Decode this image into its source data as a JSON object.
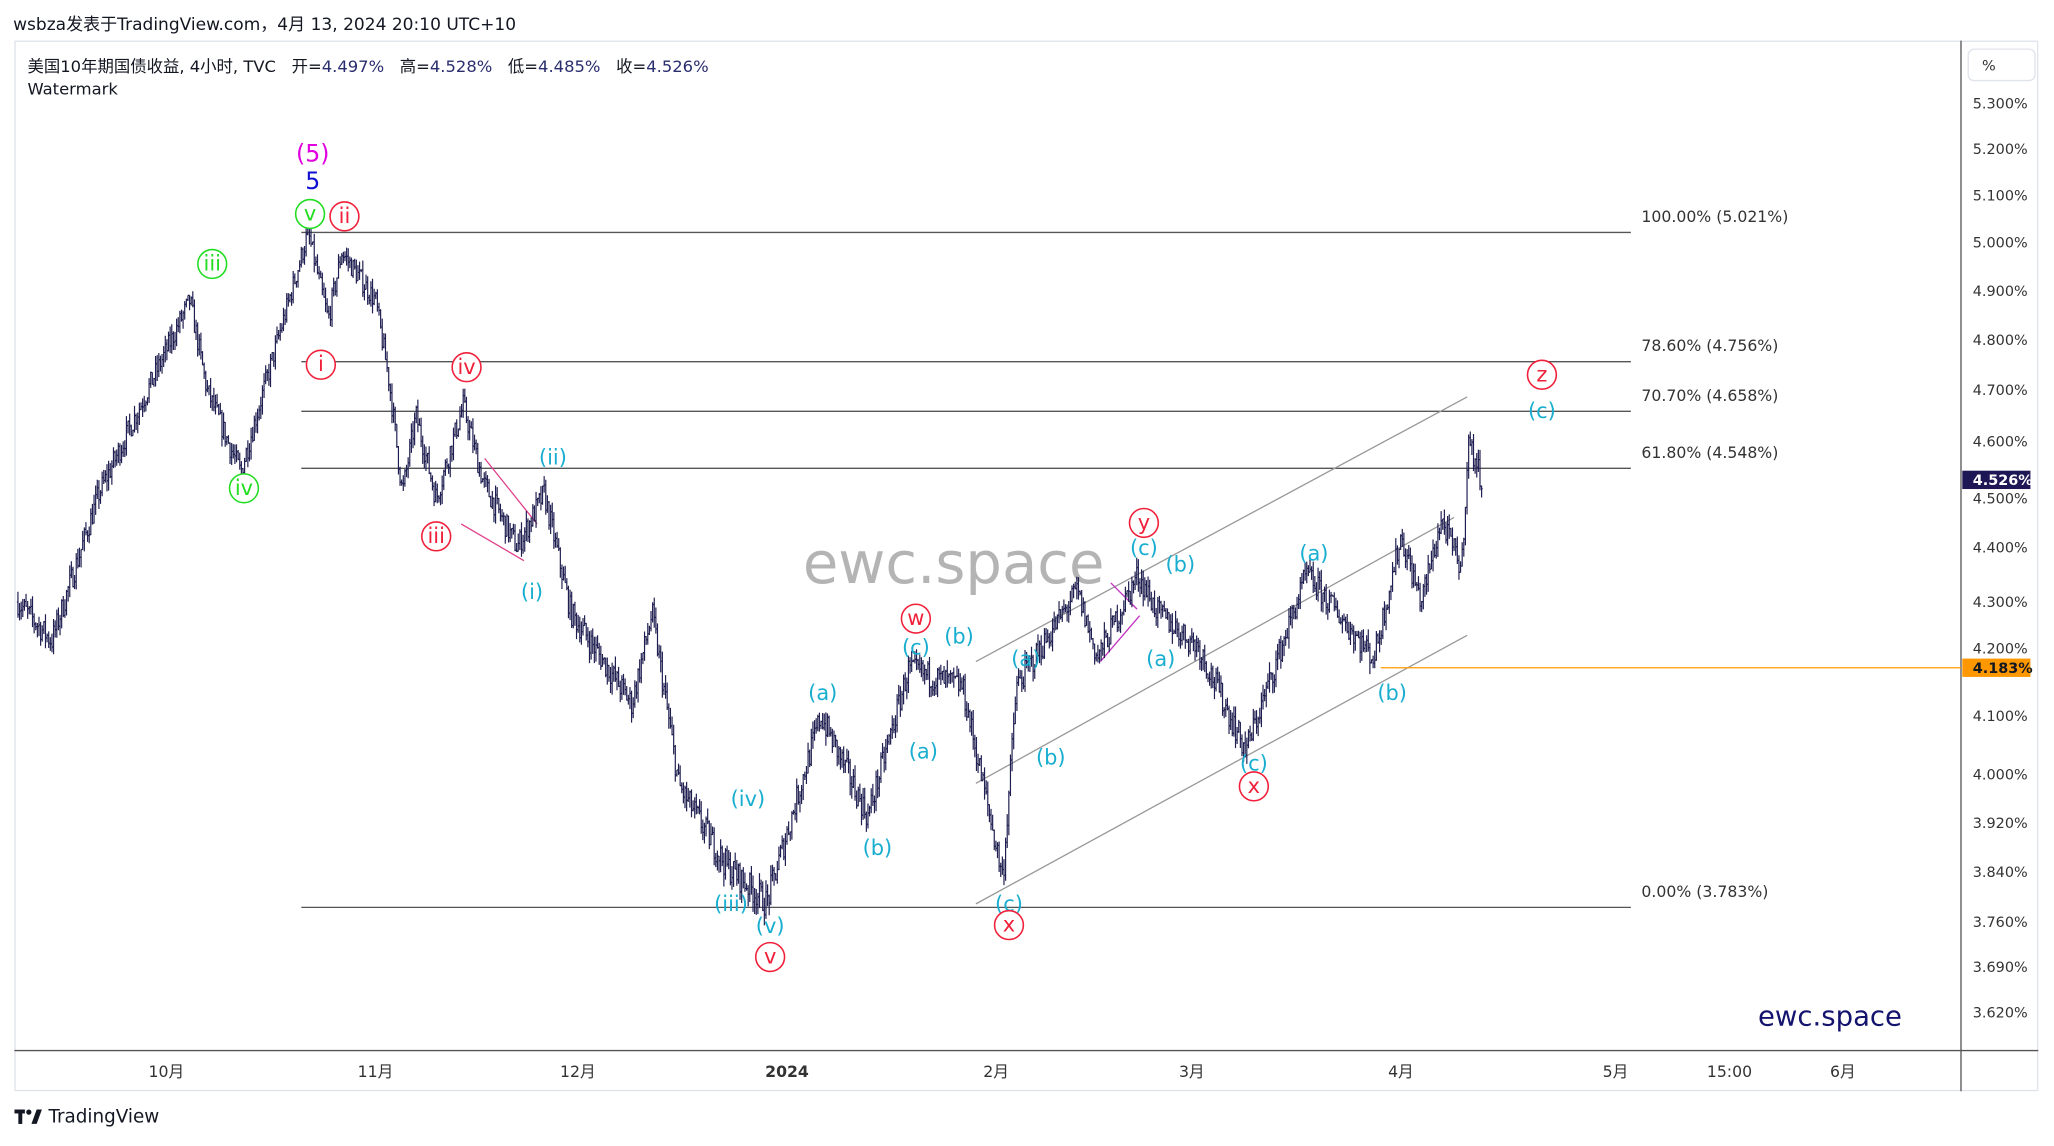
{
  "publish_line": "wsbza发表于TradingView.com，4月 13, 2024 20:10 UTC+10",
  "legend": {
    "symbol": "美国10年期国债收益, 4小时, TVC",
    "open_label": "开=",
    "open": "4.497%",
    "high_label": "高=",
    "high": "4.528%",
    "low_label": "低=",
    "low": "4.485%",
    "close_label": "收=",
    "close": "4.526%"
  },
  "watermark_label": "Watermark",
  "scale_button": "%",
  "brand_center": "ewc.space",
  "brand_corner": "ewc.space",
  "footer_logo": "TradingView",
  "colors": {
    "bars": "#1e1e50",
    "green": "#22dd22",
    "red": "#f0203a",
    "cyan": "#19aed0",
    "magenta": "#e000e0",
    "blue": "#1010d0",
    "orange": "#ff9800",
    "current": "#1e1756"
  },
  "chart_data": {
    "type": "ohlc",
    "title": "美国10年期国债收益, 4小时, TVC",
    "x_unit": "days since 2023-10-01",
    "price_scale": "log",
    "ylim": [
      3.58,
      5.35
    ],
    "y_ticks": [
      "5.300%",
      "5.200%",
      "5.100%",
      "5.000%",
      "4.900%",
      "4.800%",
      "4.700%",
      "4.600%",
      "4.500%",
      "4.400%",
      "4.300%",
      "4.200%",
      "4.100%",
      "4.000%",
      "3.920%",
      "3.840%",
      "3.760%",
      "3.690%",
      "3.620%"
    ],
    "x_ticks": [
      {
        "label": "10月",
        "day": 0
      },
      {
        "label": "11月",
        "day": 31
      },
      {
        "label": "12月",
        "day": 61
      },
      {
        "label": "2024",
        "day": 92
      },
      {
        "label": "2月",
        "day": 123
      },
      {
        "label": "3月",
        "day": 152
      },
      {
        "label": "4月",
        "day": 183
      },
      {
        "label": "5月",
        "day": 214.8
      },
      {
        "label": "15:00",
        "day": 231.7
      },
      {
        "label": "6月",
        "day": 248.5
      }
    ],
    "price_path": [
      [
        -22,
        4.3
      ],
      [
        -17,
        4.23
      ],
      [
        -10,
        4.5
      ],
      [
        3.5,
        4.88
      ],
      [
        6,
        4.7
      ],
      [
        11,
        4.54
      ],
      [
        14,
        4.68
      ],
      [
        21,
        5.02
      ],
      [
        24,
        4.84
      ],
      [
        26,
        4.98
      ],
      [
        31,
        4.88
      ],
      [
        33,
        4.72
      ],
      [
        35,
        4.5
      ],
      [
        37,
        4.65
      ],
      [
        40,
        4.49
      ],
      [
        44,
        4.67
      ],
      [
        47,
        4.52
      ],
      [
        52,
        4.4
      ],
      [
        56,
        4.5
      ],
      [
        60,
        4.28
      ],
      [
        69,
        4.12
      ],
      [
        72,
        4.28
      ],
      [
        76,
        3.98
      ],
      [
        83,
        3.85
      ],
      [
        89,
        3.79
      ],
      [
        97,
        4.1
      ],
      [
        104,
        3.93
      ],
      [
        110,
        4.18
      ],
      [
        118,
        4.15
      ],
      [
        124,
        3.83
      ],
      [
        126,
        4.15
      ],
      [
        135,
        4.32
      ],
      [
        138,
        4.2
      ],
      [
        144,
        4.35
      ],
      [
        147,
        4.28
      ],
      [
        153,
        4.22
      ],
      [
        160,
        4.04
      ],
      [
        169,
        4.35
      ],
      [
        179,
        4.2
      ],
      [
        183,
        4.42
      ],
      [
        186,
        4.3
      ],
      [
        189,
        4.45
      ],
      [
        192,
        4.36
      ],
      [
        193,
        4.6
      ],
      [
        195,
        4.526
      ]
    ],
    "fib_levels": [
      {
        "label": "100.00% (5.021%)",
        "price": 5.021
      },
      {
        "label": "78.60% (4.756%)",
        "price": 4.756
      },
      {
        "label": "70.70% (4.658%)",
        "price": 4.658
      },
      {
        "label": "61.80% (4.548%)",
        "price": 4.548
      },
      {
        "label": "0.00% (3.783%)",
        "price": 3.783
      }
    ],
    "current_price": {
      "label": "4.526%",
      "price": 4.526
    },
    "horizontal_line": {
      "label": "4.183%",
      "price": 4.183,
      "from_day": 180
    },
    "wave_labels": [
      {
        "text": "(5)",
        "color": "magenta",
        "day": 21.7,
        "price": 5.19,
        "circle": false
      },
      {
        "text": "5",
        "color": "blue",
        "day": 21.7,
        "price": 5.13,
        "circle": false
      },
      {
        "text": "v",
        "color": "green",
        "day": 21.3,
        "price": 5.06,
        "circle": true
      },
      {
        "text": "ii",
        "color": "red",
        "day": 26.4,
        "price": 5.055,
        "circle": true
      },
      {
        "text": "iii",
        "color": "green",
        "day": 6.8,
        "price": 4.955,
        "circle": true
      },
      {
        "text": "iv",
        "color": "green",
        "day": 11.5,
        "price": 4.51,
        "circle": true
      },
      {
        "text": "i",
        "color": "red",
        "day": 22.9,
        "price": 4.75,
        "circle": true
      },
      {
        "text": "iv",
        "color": "red",
        "day": 44.5,
        "price": 4.745,
        "circle": true
      },
      {
        "text": "iii",
        "color": "red",
        "day": 40,
        "price": 4.42,
        "circle": true
      },
      {
        "text": "(ii)",
        "color": "cyan",
        "day": 57.3,
        "price": 4.57,
        "circle": false
      },
      {
        "text": "(i)",
        "color": "cyan",
        "day": 54.2,
        "price": 4.32,
        "circle": false
      },
      {
        "text": "(iv)",
        "color": "cyan",
        "day": 86.2,
        "price": 3.96,
        "circle": false
      },
      {
        "text": "(iii)",
        "color": "cyan",
        "day": 83.7,
        "price": 3.79,
        "circle": false
      },
      {
        "text": "(v)",
        "color": "cyan",
        "day": 89.5,
        "price": 3.755,
        "circle": false
      },
      {
        "text": "v",
        "color": "red",
        "day": 89.5,
        "price": 3.705,
        "circle": true
      },
      {
        "text": "(a)",
        "color": "cyan",
        "day": 97.3,
        "price": 4.14,
        "circle": false
      },
      {
        "text": "(b)",
        "color": "cyan",
        "day": 105.4,
        "price": 3.88,
        "circle": false
      },
      {
        "text": "w",
        "color": "red",
        "day": 111.1,
        "price": 4.27,
        "circle": true
      },
      {
        "text": "(c)",
        "color": "cyan",
        "day": 111.1,
        "price": 4.22,
        "circle": false
      },
      {
        "text": "(a)",
        "color": "cyan",
        "day": 112.2,
        "price": 4.04,
        "circle": false
      },
      {
        "text": "(b)",
        "color": "cyan",
        "day": 117.5,
        "price": 4.24,
        "circle": false
      },
      {
        "text": "(a)",
        "color": "cyan",
        "day": 127.4,
        "price": 4.2,
        "circle": false
      },
      {
        "text": "(b)",
        "color": "cyan",
        "day": 131.1,
        "price": 4.03,
        "circle": false
      },
      {
        "text": "(c)",
        "color": "cyan",
        "day": 124.9,
        "price": 3.79,
        "circle": false
      },
      {
        "text": "x",
        "color": "red",
        "day": 124.9,
        "price": 3.755,
        "circle": true
      },
      {
        "text": "y",
        "color": "red",
        "day": 144.9,
        "price": 4.445,
        "circle": true
      },
      {
        "text": "(c)",
        "color": "cyan",
        "day": 144.9,
        "price": 4.4,
        "circle": false
      },
      {
        "text": "(b)",
        "color": "cyan",
        "day": 150.3,
        "price": 4.37,
        "circle": false
      },
      {
        "text": "(a)",
        "color": "cyan",
        "day": 147.4,
        "price": 4.2,
        "circle": false
      },
      {
        "text": "(c)",
        "color": "cyan",
        "day": 161.2,
        "price": 4.02,
        "circle": false
      },
      {
        "text": "x",
        "color": "red",
        "day": 161.2,
        "price": 3.98,
        "circle": true
      },
      {
        "text": "(a)",
        "color": "cyan",
        "day": 170.1,
        "price": 4.39,
        "circle": false
      },
      {
        "text": "(b)",
        "color": "cyan",
        "day": 181.7,
        "price": 4.14,
        "circle": false
      },
      {
        "text": "z",
        "color": "red",
        "day": 203.9,
        "price": 4.73,
        "circle": true
      },
      {
        "text": "(c)",
        "color": "cyan",
        "day": 203.9,
        "price": 4.66,
        "circle": false
      }
    ]
  }
}
